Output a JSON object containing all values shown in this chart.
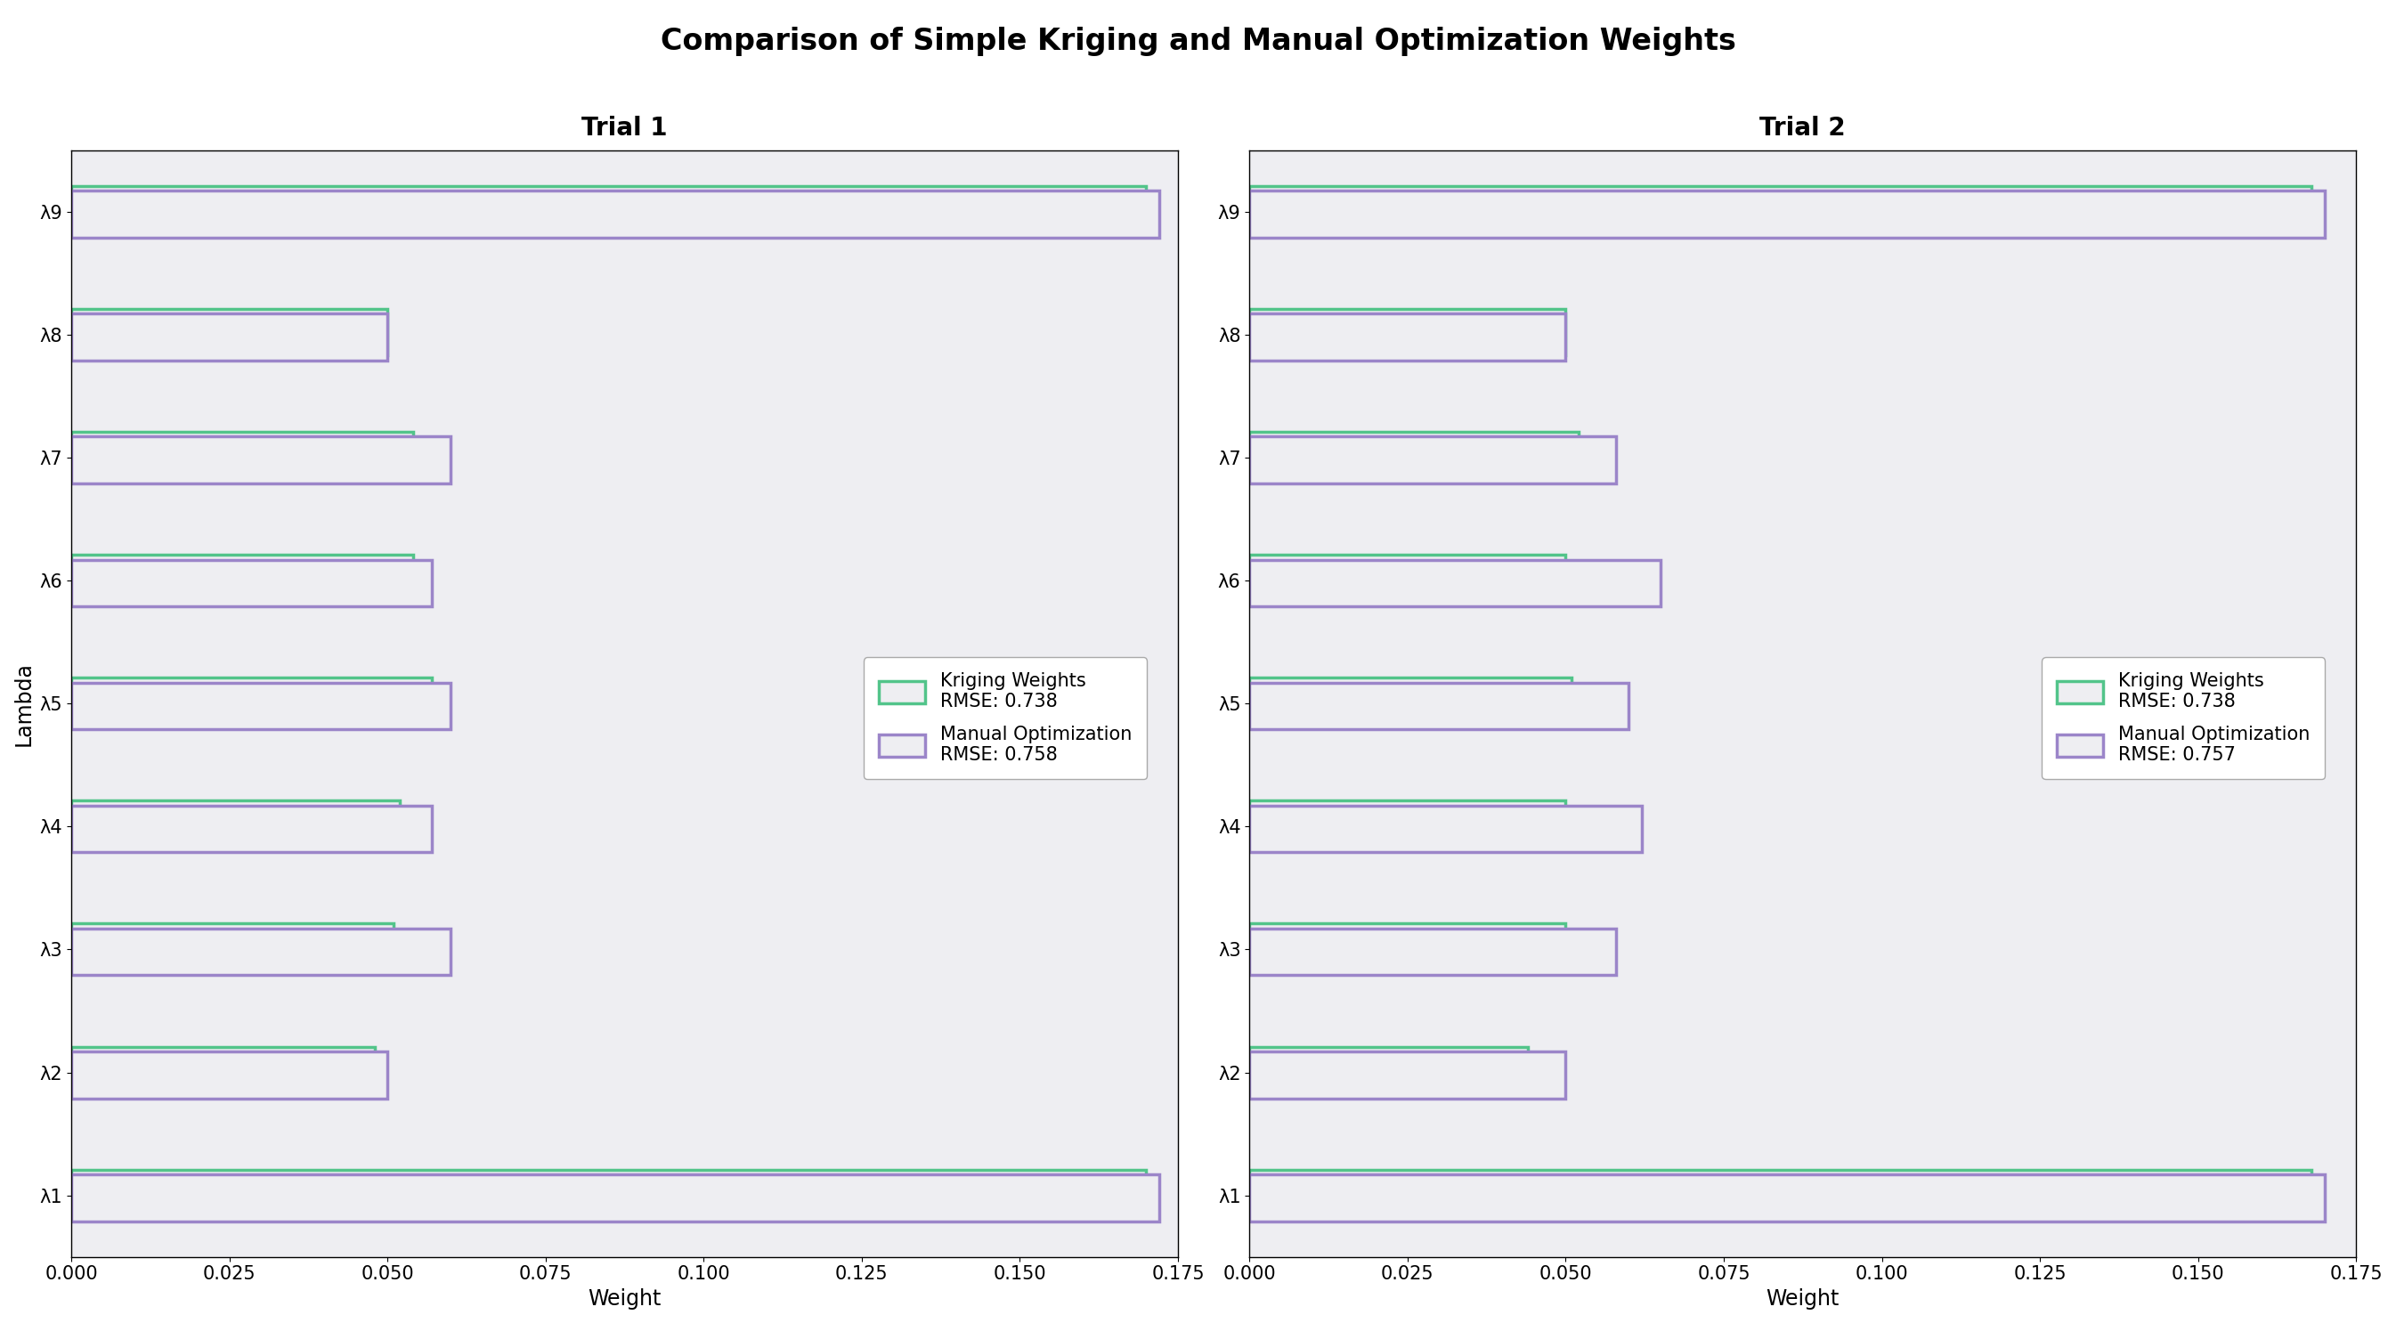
{
  "title": "Comparison of Simple Kriging and Manual Optimization Weights",
  "subplot_titles": [
    "Trial 1",
    "Trial 2"
  ],
  "ylabel": "Lambda",
  "xlabel": "Weight",
  "ytick_labels": [
    "λ1",
    "λ2",
    "λ3",
    "λ4",
    "λ5",
    "λ6",
    "λ7",
    "λ8",
    "λ9"
  ],
  "xlim": [
    0.0,
    0.175
  ],
  "xticks": [
    0.0,
    0.025,
    0.05,
    0.075,
    0.1,
    0.125,
    0.15,
    0.175
  ],
  "trial1": {
    "kriging": [
      0.17,
      0.048,
      0.051,
      0.052,
      0.057,
      0.054,
      0.054,
      0.05,
      0.17
    ],
    "manual": [
      0.172,
      0.05,
      0.06,
      0.057,
      0.06,
      0.057,
      0.06,
      0.05,
      0.172
    ],
    "kriging_rmse": "0.738",
    "manual_rmse": "0.758"
  },
  "trial2": {
    "kriging": [
      0.168,
      0.044,
      0.05,
      0.05,
      0.051,
      0.05,
      0.052,
      0.05,
      0.168
    ],
    "manual": [
      0.17,
      0.05,
      0.058,
      0.062,
      0.06,
      0.065,
      0.058,
      0.05,
      0.17
    ],
    "kriging_rmse": "0.738",
    "manual_rmse": "0.757"
  },
  "kriging_color": "#52C48A",
  "manual_color": "#9B85C9",
  "bg_color": "#EEEEF2",
  "bar_height": 0.38,
  "bar_gap": 0.04,
  "title_fontsize": 24,
  "subtitle_fontsize": 20,
  "label_fontsize": 17,
  "tick_fontsize": 15,
  "legend_fontsize": 15,
  "linewidth": 2.5
}
